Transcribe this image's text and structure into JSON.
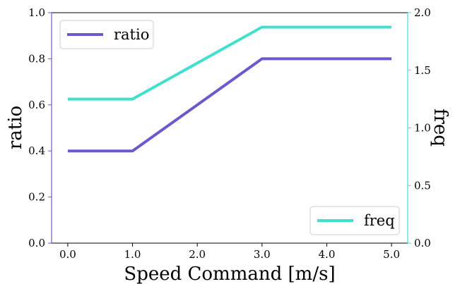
{
  "chart_data": {
    "type": "line",
    "x": [
      0.0,
      1.0,
      3.0,
      5.0
    ],
    "xlabel": "Speed Command [m/s]",
    "xlim": [
      -0.25,
      5.25
    ],
    "xticks": [
      0.0,
      1.0,
      2.0,
      3.0,
      4.0,
      5.0
    ],
    "xtick_labels": [
      "0.0",
      "1.0",
      "2.0",
      "3.0",
      "4.0",
      "5.0"
    ],
    "grid": false,
    "left_axis": {
      "label": "ratio",
      "ylim": [
        0.0,
        1.0
      ],
      "ticks": [
        0.0,
        0.2,
        0.4,
        0.6,
        0.8,
        1.0
      ],
      "tick_labels": [
        "0.0",
        "0.2",
        "0.4",
        "0.6",
        "0.8",
        "1.0"
      ],
      "color": "#6a5acd"
    },
    "right_axis": {
      "label": "freq",
      "ylim": [
        0.0,
        2.0
      ],
      "ticks": [
        0.0,
        0.5,
        1.0,
        1.5,
        2.0
      ],
      "tick_labels": [
        "0.0",
        "0.5",
        "1.0",
        "1.5",
        "2.0"
      ],
      "color": "#40e0d0"
    },
    "series": [
      {
        "name": "ratio",
        "axis": "left",
        "color": "#6a5acd",
        "values": [
          0.4,
          0.4,
          0.8,
          0.8
        ]
      },
      {
        "name": "freq",
        "axis": "right",
        "color": "#40e0d0",
        "values": [
          1.25,
          1.25,
          1.875,
          1.875
        ]
      }
    ],
    "legends": [
      {
        "series": "ratio",
        "placement": "upper-left"
      },
      {
        "series": "freq",
        "placement": "lower-right"
      }
    ]
  }
}
